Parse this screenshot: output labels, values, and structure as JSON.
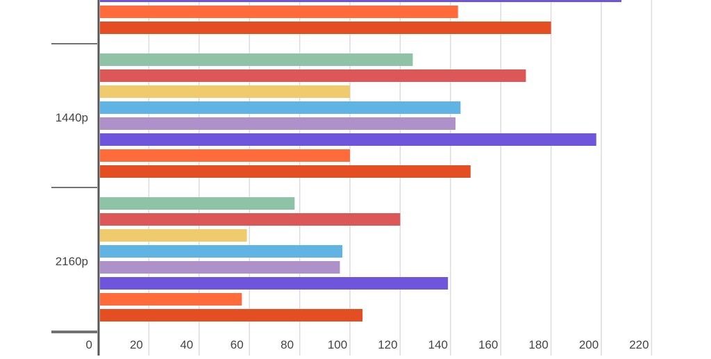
{
  "chart_data": {
    "type": "bar",
    "orientation": "horizontal",
    "categories": [
      "",
      "1440p",
      "2160p"
    ],
    "series": [
      {
        "color": "#8fc3a8",
        "values": [
          null,
          125,
          78
        ]
      },
      {
        "color": "#dc5757",
        "values": [
          null,
          170,
          120
        ]
      },
      {
        "color": "#efcb6e",
        "values": [
          null,
          100,
          59
        ]
      },
      {
        "color": "#5fb4e4",
        "values": [
          null,
          144,
          97
        ]
      },
      {
        "color": "#ae91c8",
        "values": [
          null,
          142,
          96
        ]
      },
      {
        "color": "#6e55dc",
        "values": [
          208,
          198,
          139
        ]
      },
      {
        "color": "#ff6b3a",
        "values": [
          143,
          100,
          57
        ]
      },
      {
        "color": "#e44e22",
        "values": [
          180,
          148,
          105
        ]
      }
    ],
    "x_ticks": [
      "0",
      "20",
      "40",
      "60",
      "80",
      "100",
      "120",
      "140",
      "160",
      "180",
      "200",
      "220"
    ],
    "xlim": [
      0,
      220
    ],
    "grid": true,
    "title": "",
    "xlabel": "",
    "ylabel": ""
  }
}
